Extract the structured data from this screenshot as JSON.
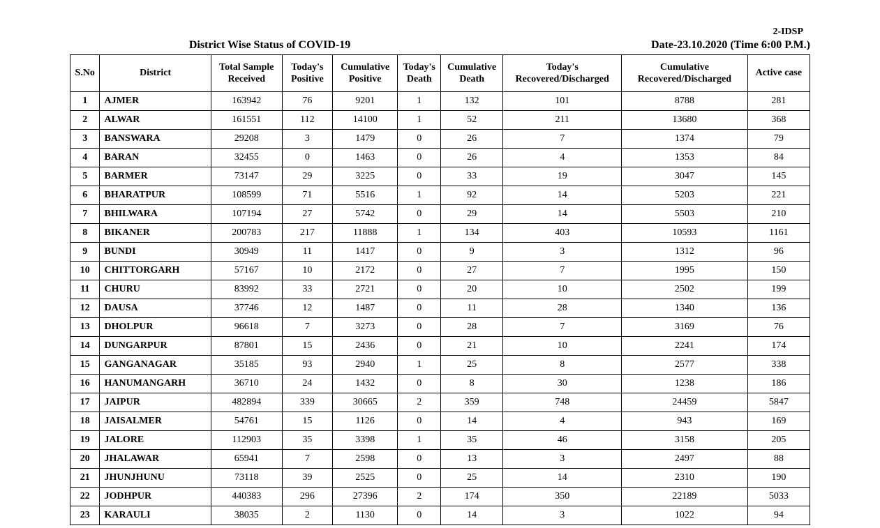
{
  "header_id": "2-IDSP",
  "title": "District Wise Status of  COVID-19",
  "date_label": "Date-23.10.2020 (Time 6:00 P.M.)",
  "columns": [
    "S.No",
    "District",
    "Total Sample Received",
    "Today's Positive",
    "Cumulative Positive",
    "Today's Death",
    "Cumulative Death",
    "Today's Recovered/Discharged",
    "Cumulative Recovered/Discharged",
    "Active  case"
  ],
  "rows": [
    {
      "sno": "1",
      "district": "AJMER",
      "sample": "163942",
      "tpos": "76",
      "cpos": "9201",
      "tdth": "1",
      "cdth": "132",
      "trec": "101",
      "crec": "8788",
      "act": "281"
    },
    {
      "sno": "2",
      "district": "ALWAR",
      "sample": "161551",
      "tpos": "112",
      "cpos": "14100",
      "tdth": "1",
      "cdth": "52",
      "trec": "211",
      "crec": "13680",
      "act": "368"
    },
    {
      "sno": "3",
      "district": "BANSWARA",
      "sample": "29208",
      "tpos": "3",
      "cpos": "1479",
      "tdth": "0",
      "cdth": "26",
      "trec": "7",
      "crec": "1374",
      "act": "79"
    },
    {
      "sno": "4",
      "district": "BARAN",
      "sample": "32455",
      "tpos": "0",
      "cpos": "1463",
      "tdth": "0",
      "cdth": "26",
      "trec": "4",
      "crec": "1353",
      "act": "84"
    },
    {
      "sno": "5",
      "district": "BARMER",
      "sample": "73147",
      "tpos": "29",
      "cpos": "3225",
      "tdth": "0",
      "cdth": "33",
      "trec": "19",
      "crec": "3047",
      "act": "145"
    },
    {
      "sno": "6",
      "district": "BHARATPUR",
      "sample": "108599",
      "tpos": "71",
      "cpos": "5516",
      "tdth": "1",
      "cdth": "92",
      "trec": "14",
      "crec": "5203",
      "act": "221"
    },
    {
      "sno": "7",
      "district": "BHILWARA",
      "sample": "107194",
      "tpos": "27",
      "cpos": "5742",
      "tdth": "0",
      "cdth": "29",
      "trec": "14",
      "crec": "5503",
      "act": "210"
    },
    {
      "sno": "8",
      "district": "BIKANER",
      "sample": "200783",
      "tpos": "217",
      "cpos": "11888",
      "tdth": "1",
      "cdth": "134",
      "trec": "403",
      "crec": "10593",
      "act": "1161"
    },
    {
      "sno": "9",
      "district": "BUNDI",
      "sample": "30949",
      "tpos": "11",
      "cpos": "1417",
      "tdth": "0",
      "cdth": "9",
      "trec": "3",
      "crec": "1312",
      "act": "96"
    },
    {
      "sno": "10",
      "district": "CHITTORGARH",
      "sample": "57167",
      "tpos": "10",
      "cpos": "2172",
      "tdth": "0",
      "cdth": "27",
      "trec": "7",
      "crec": "1995",
      "act": "150"
    },
    {
      "sno": "11",
      "district": "CHURU",
      "sample": "83992",
      "tpos": "33",
      "cpos": "2721",
      "tdth": "0",
      "cdth": "20",
      "trec": "10",
      "crec": "2502",
      "act": "199"
    },
    {
      "sno": "12",
      "district": "DAUSA",
      "sample": "37746",
      "tpos": "12",
      "cpos": "1487",
      "tdth": "0",
      "cdth": "11",
      "trec": "28",
      "crec": "1340",
      "act": "136"
    },
    {
      "sno": "13",
      "district": "DHOLPUR",
      "sample": "96618",
      "tpos": "7",
      "cpos": "3273",
      "tdth": "0",
      "cdth": "28",
      "trec": "7",
      "crec": "3169",
      "act": "76"
    },
    {
      "sno": "14",
      "district": "DUNGARPUR",
      "sample": "87801",
      "tpos": "15",
      "cpos": "2436",
      "tdth": "0",
      "cdth": "21",
      "trec": "10",
      "crec": "2241",
      "act": "174"
    },
    {
      "sno": "15",
      "district": "GANGANAGAR",
      "sample": "35185",
      "tpos": "93",
      "cpos": "2940",
      "tdth": "1",
      "cdth": "25",
      "trec": "8",
      "crec": "2577",
      "act": "338"
    },
    {
      "sno": "16",
      "district": "HANUMANGARH",
      "sample": "36710",
      "tpos": "24",
      "cpos": "1432",
      "tdth": "0",
      "cdth": "8",
      "trec": "30",
      "crec": "1238",
      "act": "186"
    },
    {
      "sno": "17",
      "district": "JAIPUR",
      "sample": "482894",
      "tpos": "339",
      "cpos": "30665",
      "tdth": "2",
      "cdth": "359",
      "trec": "748",
      "crec": "24459",
      "act": "5847"
    },
    {
      "sno": "18",
      "district": "JAISALMER",
      "sample": "54761",
      "tpos": "15",
      "cpos": "1126",
      "tdth": "0",
      "cdth": "14",
      "trec": "4",
      "crec": "943",
      "act": "169"
    },
    {
      "sno": "19",
      "district": "JALORE",
      "sample": "112903",
      "tpos": "35",
      "cpos": "3398",
      "tdth": "1",
      "cdth": "35",
      "trec": "46",
      "crec": "3158",
      "act": "205"
    },
    {
      "sno": "20",
      "district": "JHALAWAR",
      "sample": "65941",
      "tpos": "7",
      "cpos": "2598",
      "tdth": "0",
      "cdth": "13",
      "trec": "3",
      "crec": "2497",
      "act": "88"
    },
    {
      "sno": "21",
      "district": "JHUNJHUNU",
      "sample": "73118",
      "tpos": "39",
      "cpos": "2525",
      "tdth": "0",
      "cdth": "25",
      "trec": "14",
      "crec": "2310",
      "act": "190"
    },
    {
      "sno": "22",
      "district": "JODHPUR",
      "sample": "440383",
      "tpos": "296",
      "cpos": "27396",
      "tdth": "2",
      "cdth": "174",
      "trec": "350",
      "crec": "22189",
      "act": "5033"
    },
    {
      "sno": "23",
      "district": "KARAULI",
      "sample": "38035",
      "tpos": "2",
      "cpos": "1130",
      "tdth": "0",
      "cdth": "14",
      "trec": "3",
      "crec": "1022",
      "act": "94"
    }
  ]
}
